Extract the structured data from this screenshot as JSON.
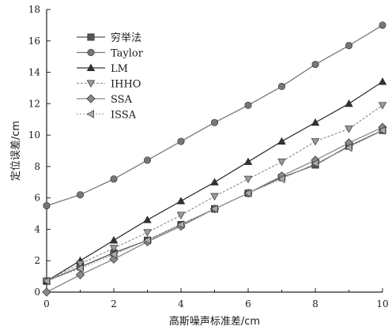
{
  "chart_data": {
    "type": "line",
    "xlabel": "高斯噪声标准差/cm",
    "ylabel": "定位误差/cm",
    "xlim": [
      0,
      10
    ],
    "ylim": [
      0,
      18
    ],
    "x_ticks": [
      0,
      2,
      4,
      6,
      8,
      10
    ],
    "y_ticks": [
      0,
      2,
      4,
      6,
      8,
      10,
      12,
      14,
      16,
      18
    ],
    "grid": false,
    "legend_position": "top-left",
    "x": [
      0,
      1,
      2,
      3,
      4,
      5,
      6,
      7,
      8,
      9,
      10
    ],
    "series": [
      {
        "name": "穷举法",
        "marker": "square",
        "color": "#555555",
        "dash": "",
        "values": [
          0.7,
          1.6,
          2.5,
          3.3,
          4.3,
          5.3,
          6.3,
          7.3,
          8.1,
          9.3,
          10.3
        ]
      },
      {
        "name": "Taylor",
        "marker": "circle",
        "color": "#777777",
        "dash": "",
        "values": [
          5.5,
          6.2,
          7.2,
          8.4,
          9.6,
          10.8,
          11.9,
          13.1,
          14.5,
          15.7,
          17.0
        ]
      },
      {
        "name": "LM",
        "marker": "triangle-up",
        "color": "#333333",
        "dash": "",
        "values": [
          0.7,
          2.0,
          3.3,
          4.6,
          5.8,
          7.0,
          8.3,
          9.6,
          10.8,
          12.0,
          13.4
        ]
      },
      {
        "name": "IHHO",
        "marker": "triangle-down",
        "color": "#999999",
        "dash": "3,2",
        "values": [
          0.7,
          1.8,
          2.8,
          3.8,
          4.9,
          6.1,
          7.2,
          8.3,
          9.6,
          10.4,
          11.9
        ]
      },
      {
        "name": "SSA",
        "marker": "diamond",
        "color": "#888888",
        "dash": "",
        "values": [
          0.0,
          1.1,
          2.1,
          3.2,
          4.2,
          5.3,
          6.3,
          7.4,
          8.4,
          9.5,
          10.5
        ]
      },
      {
        "name": "ISSA",
        "marker": "triangle-left",
        "color": "#aaaaaa",
        "dash": "2,2",
        "values": [
          0.7,
          1.5,
          2.4,
          3.3,
          4.3,
          5.3,
          6.3,
          7.2,
          8.2,
          9.2,
          10.3
        ]
      }
    ]
  }
}
